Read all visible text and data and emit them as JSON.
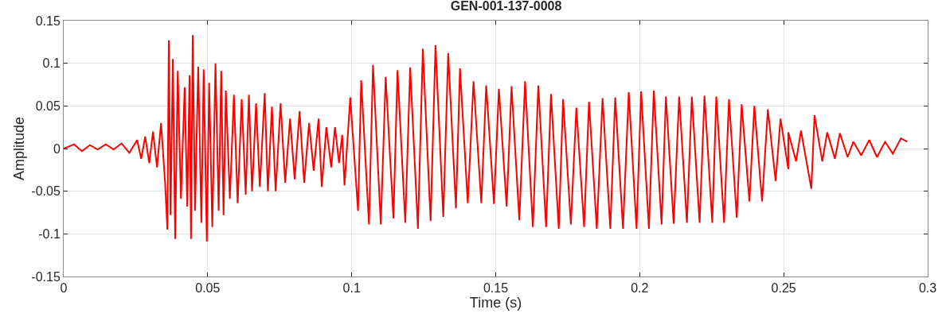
{
  "chart_data": {
    "type": "line",
    "title": "GEN-001-137-0008",
    "xlabel": "Time (s)",
    "ylabel": "Amplitude",
    "xlim": [
      0,
      0.3
    ],
    "xticks": [
      0,
      0.05,
      0.1,
      0.15,
      0.2,
      0.25,
      0.3
    ],
    "ylim": [
      -0.15,
      0.15
    ],
    "yticks": [
      -0.15,
      -0.1,
      -0.05,
      0,
      0.05,
      0.1,
      0.15
    ],
    "grid": true,
    "marker": "none",
    "line_style": "solid",
    "x": [
      0,
      0.0036,
      0.0063,
      0.0091,
      0.0118,
      0.0146,
      0.0173,
      0.0201,
      0.0228,
      0.0255,
      0.0269,
      0.0283,
      0.0297,
      0.031,
      0.0324,
      0.0338,
      0.0352,
      0.036,
      0.0365,
      0.0371,
      0.0379,
      0.0387,
      0.0396,
      0.0407,
      0.042,
      0.0429,
      0.0437,
      0.0442,
      0.0448,
      0.0456,
      0.0467,
      0.0478,
      0.0486,
      0.0497,
      0.0505,
      0.0516,
      0.0527,
      0.0538,
      0.0547,
      0.0555,
      0.0563,
      0.0577,
      0.0591,
      0.0604,
      0.0618,
      0.0632,
      0.0643,
      0.0654,
      0.0668,
      0.0681,
      0.0698,
      0.0709,
      0.0723,
      0.0736,
      0.0753,
      0.0769,
      0.0786,
      0.0802,
      0.0819,
      0.0835,
      0.0852,
      0.0868,
      0.0885,
      0.0896,
      0.0912,
      0.0929,
      0.0942,
      0.0956,
      0.0967,
      0.0975,
      0.0995,
      0.1022,
      0.1033,
      0.106,
      0.1074,
      0.1101,
      0.1118,
      0.1145,
      0.1159,
      0.1186,
      0.1203,
      0.123,
      0.1247,
      0.1274,
      0.1291,
      0.1318,
      0.1335,
      0.1362,
      0.1376,
      0.1403,
      0.1423,
      0.145,
      0.1467,
      0.1494,
      0.1511,
      0.1538,
      0.1555,
      0.1582,
      0.1602,
      0.1629,
      0.1648,
      0.1675,
      0.1692,
      0.1719,
      0.1734,
      0.1761,
      0.178,
      0.1807,
      0.1824,
      0.1851,
      0.1871,
      0.1898,
      0.1915,
      0.1942,
      0.1962,
      0.1989,
      0.2005,
      0.2032,
      0.2049,
      0.2076,
      0.2091,
      0.2118,
      0.2137,
      0.2164,
      0.2181,
      0.2208,
      0.2225,
      0.2252,
      0.2266,
      0.2293,
      0.231,
      0.2337,
      0.2354,
      0.2381,
      0.2398,
      0.2425,
      0.2445,
      0.2472,
      0.2489,
      0.2516,
      0.2516,
      0.2543,
      0.256,
      0.2596,
      0.2607,
      0.2634,
      0.2651,
      0.2678,
      0.2695,
      0.2722,
      0.2742,
      0.2769,
      0.2797,
      0.2824,
      0.2852,
      0.2879,
      0.2907,
      0.2929
    ],
    "series": [
      {
        "color": "#ff0000",
        "values": [
          0,
          0.005,
          -0.003,
          0.004,
          -0.001,
          0.005,
          -0.001,
          0.006,
          -0.005,
          0.01,
          -0.012,
          0.014,
          -0.017,
          0.02,
          -0.022,
          0.03,
          -0.04,
          -0.095,
          0.127,
          -0.078,
          0.105,
          -0.106,
          0.091,
          -0.059,
          0.072,
          -0.068,
          0.086,
          -0.106,
          0.133,
          -0.073,
          0.096,
          -0.087,
          0.093,
          -0.109,
          0.077,
          -0.092,
          0.1,
          -0.073,
          0.091,
          -0.078,
          0.068,
          -0.059,
          0.063,
          -0.064,
          0.058,
          -0.054,
          0.063,
          -0.05,
          0.053,
          -0.045,
          0.065,
          -0.05,
          0.049,
          -0.05,
          0.053,
          -0.04,
          0.035,
          -0.036,
          0.044,
          -0.04,
          0.03,
          -0.026,
          0.035,
          -0.045,
          0.025,
          -0.022,
          0.025,
          -0.017,
          0.016,
          -0.043,
          0.06,
          -0.073,
          0.08,
          -0.089,
          0.098,
          -0.089,
          0.084,
          -0.082,
          0.092,
          -0.087,
          0.095,
          -0.094,
          0.117,
          -0.085,
          0.121,
          -0.08,
          0.112,
          -0.07,
          0.094,
          -0.064,
          0.079,
          -0.064,
          0.074,
          -0.065,
          0.07,
          -0.068,
          0.073,
          -0.084,
          0.079,
          -0.092,
          0.074,
          -0.092,
          0.064,
          -0.094,
          0.058,
          -0.089,
          0.048,
          -0.092,
          0.055,
          -0.094,
          0.059,
          -0.094,
          0.06,
          -0.094,
          0.066,
          -0.094,
          0.067,
          -0.094,
          0.068,
          -0.089,
          0.061,
          -0.088,
          0.061,
          -0.087,
          0.061,
          -0.087,
          0.062,
          -0.087,
          0.061,
          -0.087,
          0.058,
          -0.081,
          0.052,
          -0.062,
          0.05,
          -0.062,
          0.046,
          -0.038,
          0.035,
          -0.024,
          0.019,
          -0.015,
          0.021,
          -0.047,
          0.039,
          -0.015,
          0.019,
          -0.012,
          0.018,
          -0.01,
          0.008,
          -0.008,
          0.01,
          -0.01,
          0.008,
          -0.006,
          0.012,
          0.008
        ]
      }
    ]
  }
}
